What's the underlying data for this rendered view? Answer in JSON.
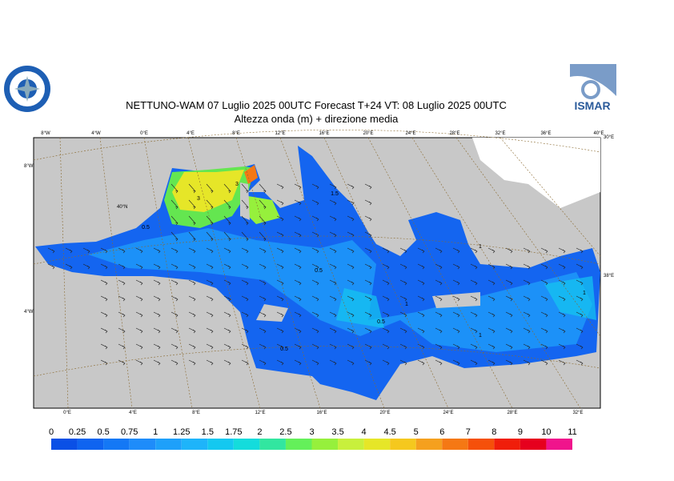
{
  "header": {
    "title": "NETTUNO-WAM  07  Luglio   2025 00UTC Forecast T+24 VT: 08  Luglio   2025 00UTC",
    "subtitle": "Altezza onda (m) + direzione media",
    "logo_right": "ISMAR"
  },
  "graticule": {
    "top": [
      "8°W",
      "4°W",
      "0°E",
      "4°E",
      "8°E",
      "12°E",
      "16°E",
      "20°E",
      "24°E",
      "28°E",
      "32°E",
      "36°E",
      "40°E"
    ],
    "bottom": [
      "0°E",
      "4°E",
      "8°E",
      "12°E",
      "16°E",
      "20°E",
      "24°E",
      "28°E",
      "32°E"
    ],
    "left": [
      "8°W",
      "4°W"
    ],
    "inner": "40°N",
    "right": [
      "30°E",
      "38°E"
    ]
  },
  "contours": [
    "3",
    "3",
    "1.5",
    "0.5",
    "0.5",
    "1",
    "1",
    "1",
    "0.5",
    "0.5",
    "1"
  ],
  "legend": {
    "labels": [
      0,
      0.25,
      0.5,
      0.75,
      1,
      1.25,
      1.5,
      1.75,
      2,
      2.5,
      3,
      3.5,
      4,
      4.5,
      5,
      6,
      7,
      8,
      9,
      10,
      11
    ],
    "colors": [
      "#0a50e6",
      "#0f64f0",
      "#1478f5",
      "#1e8cfa",
      "#1ea0fa",
      "#1eb4fa",
      "#14c8f0",
      "#14dcdc",
      "#32e6a0",
      "#64f05a",
      "#96f03c",
      "#c8f03c",
      "#e6e628",
      "#f5c81e",
      "#f5a01e",
      "#f57814",
      "#f5500a",
      "#f01e0a",
      "#e6001e",
      "#f0148c",
      "#f528c8"
    ]
  }
}
